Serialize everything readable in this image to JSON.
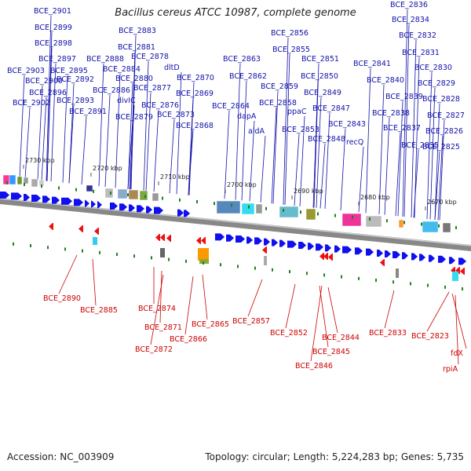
{
  "title": "Bacillus cereus ATCC 10987, complete genome",
  "footer": {
    "accession": "Accession: NC_003909",
    "info": "Topology: circular; Length: 5,224,283 bp; Genes: 5,735"
  },
  "colors": {
    "forward_gene": "#1010ee",
    "reverse_gene": "#ee1010",
    "upper_label": "#1010aa",
    "lower_label": "#cc0000",
    "dot": "#208020",
    "backbone": "#888888"
  },
  "ruler_ticks": [
    "2730 kbp",
    "2720 kbp",
    "2710 kbp",
    "2700 kbp",
    "2690 kbp",
    "2680 kbp",
    "2670 kbp"
  ],
  "upper_genes": [
    "BCE_2901",
    "BCE_2899",
    "BCE_2898",
    "BCE_2897",
    "BCE_2903",
    "BCE_2900",
    "BCE_2896",
    "BCE_2902",
    "BCE_2895",
    "BCE_2892",
    "BCE_2893",
    "BCE_2891",
    "BCE_2888",
    "BCE_2886",
    "BCE_2884",
    "divIC",
    "BCE_2883",
    "BCE_2881",
    "BCE_2878",
    "BCE_2880",
    "BCE_2877",
    "BCE_2879",
    "BCE_2876",
    "dltD",
    "BCE_2870",
    "BCE_2869",
    "BCE_2873",
    "BCE_2868",
    "BCE_2863",
    "BCE_2862",
    "BCE_2864",
    "dapA",
    "aldA",
    "BCE_2856",
    "BCE_2855",
    "BCE_2859",
    "BCE_2858",
    "ppaC",
    "BCE_2853",
    "BCE_2851",
    "BCE_2850",
    "BCE_2849",
    "BCE_2847",
    "BCE_2848",
    "BCE_2843",
    "recQ",
    "BCE_2841",
    "BCE_2840",
    "BCE_2839",
    "BCE_2838",
    "BCE_2837",
    "BCE_2835",
    "BCE_2836",
    "BCE_2834",
    "BCE_2832",
    "BCE_2831",
    "BCE_2830",
    "BCE_2829",
    "BCE_2828",
    "BCE_2827",
    "BCE_2826",
    "BCE_2825"
  ],
  "lower_genes": [
    "BCE_2890",
    "BCE_2885",
    "BCE_2874",
    "BCE_2871",
    "BCE_2872",
    "BCE_2866",
    "BCE_2865",
    "BCE_2857",
    "BCE_2852",
    "BCE_2845",
    "BCE_2846",
    "BCE_2844",
    "BCE_2833",
    "BCE_2823",
    "fdX",
    "rpiA"
  ]
}
